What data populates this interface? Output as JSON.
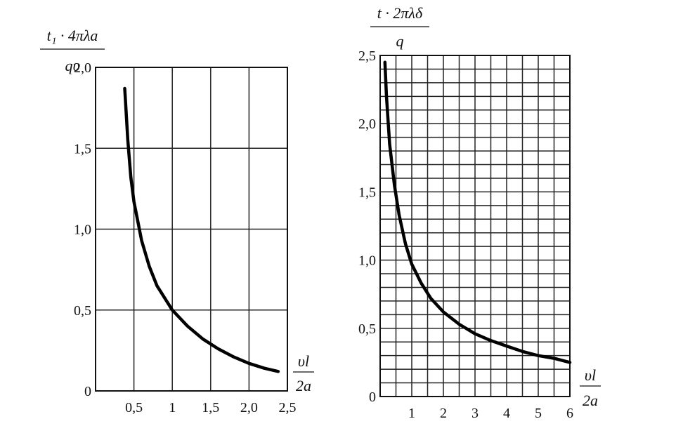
{
  "chart_data": [
    {
      "type": "line",
      "title": "",
      "ylabel": {
        "numerator": "t₁ · 4πλa",
        "denominator": "qυ"
      },
      "xlabel": {
        "numerator": "υl",
        "denominator": "2a"
      },
      "xlim": [
        0,
        2.5
      ],
      "ylim": [
        0,
        2.0
      ],
      "grid": true,
      "x_ticks": [
        {
          "value": 0.5,
          "label": "0,5"
        },
        {
          "value": 1,
          "label": "1"
        },
        {
          "value": 1.5,
          "label": "1,5"
        },
        {
          "value": 2,
          "label": "2,0"
        },
        {
          "value": 2.5,
          "label": "2,5"
        }
      ],
      "y_ticks": [
        {
          "value": 0,
          "label": "0"
        },
        {
          "value": 0.5,
          "label": "0,5"
        },
        {
          "value": 1,
          "label": "1,0"
        },
        {
          "value": 1.5,
          "label": "1,5"
        },
        {
          "value": 2,
          "label": "2,0"
        }
      ],
      "series": [
        {
          "x": [
            0.38,
            0.42,
            0.46,
            0.5,
            0.6,
            0.7,
            0.8,
            1.0,
            1.2,
            1.4,
            1.6,
            1.8,
            2.0,
            2.2,
            2.38
          ],
          "y": [
            1.87,
            1.55,
            1.32,
            1.17,
            0.93,
            0.77,
            0.65,
            0.5,
            0.4,
            0.32,
            0.26,
            0.21,
            0.17,
            0.14,
            0.12
          ]
        }
      ]
    },
    {
      "type": "line",
      "title": "",
      "ylabel": {
        "numerator": "t · 2πλδ",
        "denominator": "q"
      },
      "xlabel": {
        "numerator": "υl",
        "denominator": "2a"
      },
      "xlim": [
        0,
        6
      ],
      "ylim": [
        0,
        2.5
      ],
      "grid": true,
      "x_ticks": [
        {
          "value": 1,
          "label": "1"
        },
        {
          "value": 2,
          "label": "2"
        },
        {
          "value": 3,
          "label": "3"
        },
        {
          "value": 4,
          "label": "4"
        },
        {
          "value": 5,
          "label": "5"
        },
        {
          "value": 6,
          "label": "6"
        }
      ],
      "y_ticks": [
        {
          "value": 0,
          "label": "0"
        },
        {
          "value": 0.5,
          "label": "0,5"
        },
        {
          "value": 1,
          "label": "1,0"
        },
        {
          "value": 1.5,
          "label": "1,5"
        },
        {
          "value": 2,
          "label": "2,0"
        },
        {
          "value": 2.5,
          "label": "2,5"
        }
      ],
      "series": [
        {
          "x": [
            0.15,
            0.2,
            0.3,
            0.45,
            0.6,
            0.8,
            1.0,
            1.3,
            1.6,
            2.0,
            2.5,
            3.0,
            3.5,
            4.0,
            4.5,
            5.0,
            5.5,
            6.0
          ],
          "y": [
            2.45,
            2.2,
            1.85,
            1.55,
            1.33,
            1.12,
            0.97,
            0.83,
            0.72,
            0.62,
            0.53,
            0.46,
            0.41,
            0.37,
            0.33,
            0.3,
            0.28,
            0.25
          ]
        }
      ]
    }
  ]
}
